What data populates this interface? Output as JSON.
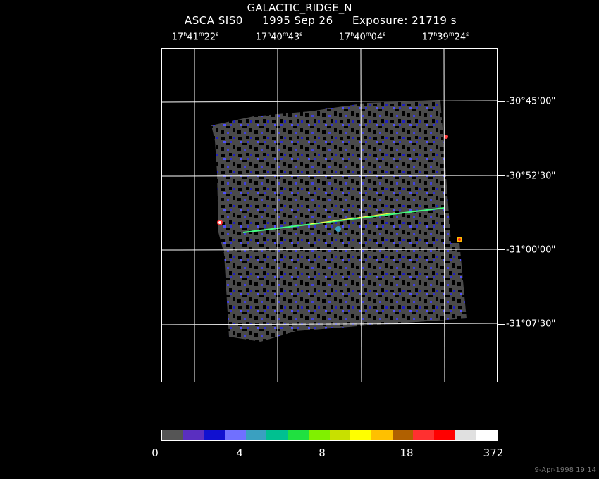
{
  "header": {
    "title": "GALACTIC_RIDGE_N",
    "instrument": "ASCA SIS0",
    "date": "1995 Sep 26",
    "exposure": "Exposure: 21719 s"
  },
  "ra_labels": [
    {
      "h": "17",
      "m": "41",
      "s": "22"
    },
    {
      "h": "17",
      "m": "40",
      "s": "43"
    },
    {
      "h": "17",
      "m": "40",
      "s": "04"
    },
    {
      "h": "17",
      "m": "39",
      "s": "24"
    }
  ],
  "dec_labels": [
    "-30°45'00\"",
    "-30°52'30\"",
    "-31°00'00\"",
    "-31°07'30\""
  ],
  "colorbar": {
    "colors": [
      "#555555",
      "#5a2fc0",
      "#1010d0",
      "#7070ff",
      "#3aa0c0",
      "#00c090",
      "#20e040",
      "#80f000",
      "#c8e000",
      "#ffff00",
      "#ffc000",
      "#b06000",
      "#ff3030",
      "#ff0000",
      "#e0e0e0",
      "#ffffff"
    ],
    "labels": [
      "0",
      "4",
      "8",
      "18",
      "372"
    ]
  },
  "footer": {
    "timestamp": "9-Apr-1998 19:14"
  }
}
